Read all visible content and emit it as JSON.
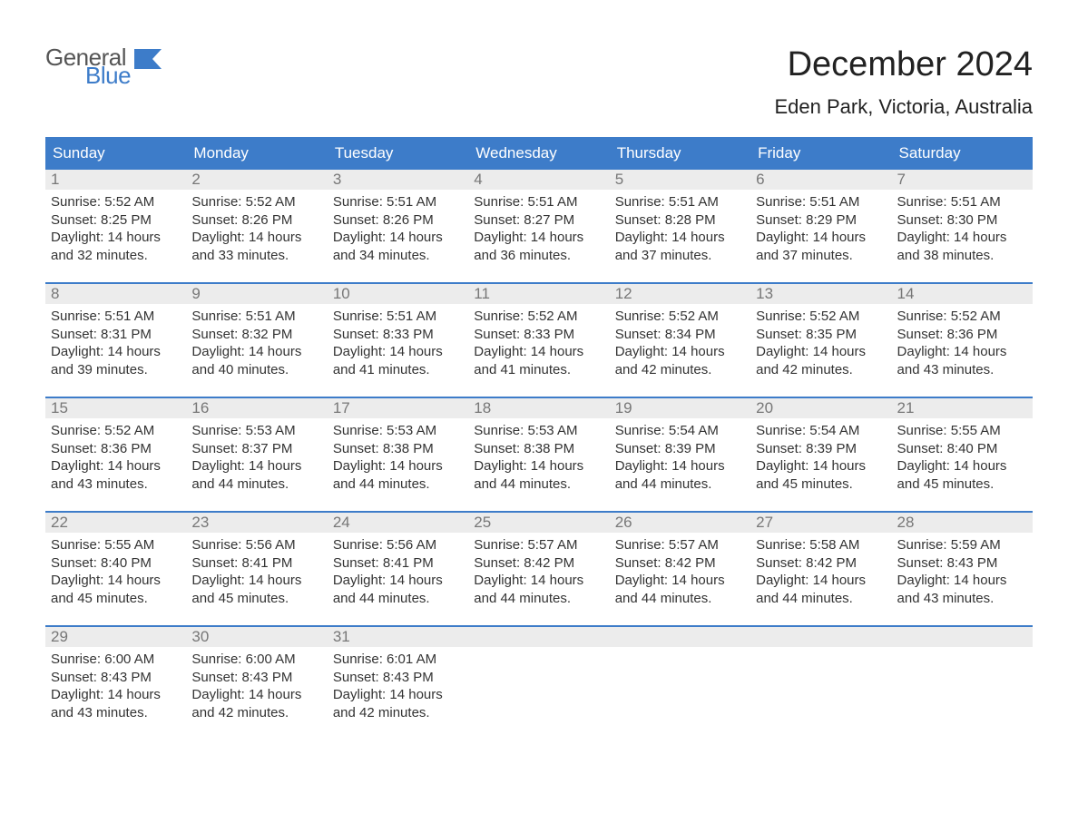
{
  "logo": {
    "text1": "General",
    "text2": "Blue"
  },
  "title": "December 2024",
  "location": "Eden Park, Victoria, Australia",
  "colors": {
    "brand_blue": "#3d7cc9",
    "header_text": "#ffffff",
    "daynum_bg": "#ececec",
    "daynum_fg": "#777777",
    "body_text": "#333333",
    "background": "#ffffff"
  },
  "columns": [
    "Sunday",
    "Monday",
    "Tuesday",
    "Wednesday",
    "Thursday",
    "Friday",
    "Saturday"
  ],
  "weeks": [
    [
      {
        "n": "1",
        "sunrise": "Sunrise: 5:52 AM",
        "sunset": "Sunset: 8:25 PM",
        "d1": "Daylight: 14 hours",
        "d2": "and 32 minutes."
      },
      {
        "n": "2",
        "sunrise": "Sunrise: 5:52 AM",
        "sunset": "Sunset: 8:26 PM",
        "d1": "Daylight: 14 hours",
        "d2": "and 33 minutes."
      },
      {
        "n": "3",
        "sunrise": "Sunrise: 5:51 AM",
        "sunset": "Sunset: 8:26 PM",
        "d1": "Daylight: 14 hours",
        "d2": "and 34 minutes."
      },
      {
        "n": "4",
        "sunrise": "Sunrise: 5:51 AM",
        "sunset": "Sunset: 8:27 PM",
        "d1": "Daylight: 14 hours",
        "d2": "and 36 minutes."
      },
      {
        "n": "5",
        "sunrise": "Sunrise: 5:51 AM",
        "sunset": "Sunset: 8:28 PM",
        "d1": "Daylight: 14 hours",
        "d2": "and 37 minutes."
      },
      {
        "n": "6",
        "sunrise": "Sunrise: 5:51 AM",
        "sunset": "Sunset: 8:29 PM",
        "d1": "Daylight: 14 hours",
        "d2": "and 37 minutes."
      },
      {
        "n": "7",
        "sunrise": "Sunrise: 5:51 AM",
        "sunset": "Sunset: 8:30 PM",
        "d1": "Daylight: 14 hours",
        "d2": "and 38 minutes."
      }
    ],
    [
      {
        "n": "8",
        "sunrise": "Sunrise: 5:51 AM",
        "sunset": "Sunset: 8:31 PM",
        "d1": "Daylight: 14 hours",
        "d2": "and 39 minutes."
      },
      {
        "n": "9",
        "sunrise": "Sunrise: 5:51 AM",
        "sunset": "Sunset: 8:32 PM",
        "d1": "Daylight: 14 hours",
        "d2": "and 40 minutes."
      },
      {
        "n": "10",
        "sunrise": "Sunrise: 5:51 AM",
        "sunset": "Sunset: 8:33 PM",
        "d1": "Daylight: 14 hours",
        "d2": "and 41 minutes."
      },
      {
        "n": "11",
        "sunrise": "Sunrise: 5:52 AM",
        "sunset": "Sunset: 8:33 PM",
        "d1": "Daylight: 14 hours",
        "d2": "and 41 minutes."
      },
      {
        "n": "12",
        "sunrise": "Sunrise: 5:52 AM",
        "sunset": "Sunset: 8:34 PM",
        "d1": "Daylight: 14 hours",
        "d2": "and 42 minutes."
      },
      {
        "n": "13",
        "sunrise": "Sunrise: 5:52 AM",
        "sunset": "Sunset: 8:35 PM",
        "d1": "Daylight: 14 hours",
        "d2": "and 42 minutes."
      },
      {
        "n": "14",
        "sunrise": "Sunrise: 5:52 AM",
        "sunset": "Sunset: 8:36 PM",
        "d1": "Daylight: 14 hours",
        "d2": "and 43 minutes."
      }
    ],
    [
      {
        "n": "15",
        "sunrise": "Sunrise: 5:52 AM",
        "sunset": "Sunset: 8:36 PM",
        "d1": "Daylight: 14 hours",
        "d2": "and 43 minutes."
      },
      {
        "n": "16",
        "sunrise": "Sunrise: 5:53 AM",
        "sunset": "Sunset: 8:37 PM",
        "d1": "Daylight: 14 hours",
        "d2": "and 44 minutes."
      },
      {
        "n": "17",
        "sunrise": "Sunrise: 5:53 AM",
        "sunset": "Sunset: 8:38 PM",
        "d1": "Daylight: 14 hours",
        "d2": "and 44 minutes."
      },
      {
        "n": "18",
        "sunrise": "Sunrise: 5:53 AM",
        "sunset": "Sunset: 8:38 PM",
        "d1": "Daylight: 14 hours",
        "d2": "and 44 minutes."
      },
      {
        "n": "19",
        "sunrise": "Sunrise: 5:54 AM",
        "sunset": "Sunset: 8:39 PM",
        "d1": "Daylight: 14 hours",
        "d2": "and 44 minutes."
      },
      {
        "n": "20",
        "sunrise": "Sunrise: 5:54 AM",
        "sunset": "Sunset: 8:39 PM",
        "d1": "Daylight: 14 hours",
        "d2": "and 45 minutes."
      },
      {
        "n": "21",
        "sunrise": "Sunrise: 5:55 AM",
        "sunset": "Sunset: 8:40 PM",
        "d1": "Daylight: 14 hours",
        "d2": "and 45 minutes."
      }
    ],
    [
      {
        "n": "22",
        "sunrise": "Sunrise: 5:55 AM",
        "sunset": "Sunset: 8:40 PM",
        "d1": "Daylight: 14 hours",
        "d2": "and 45 minutes."
      },
      {
        "n": "23",
        "sunrise": "Sunrise: 5:56 AM",
        "sunset": "Sunset: 8:41 PM",
        "d1": "Daylight: 14 hours",
        "d2": "and 45 minutes."
      },
      {
        "n": "24",
        "sunrise": "Sunrise: 5:56 AM",
        "sunset": "Sunset: 8:41 PM",
        "d1": "Daylight: 14 hours",
        "d2": "and 44 minutes."
      },
      {
        "n": "25",
        "sunrise": "Sunrise: 5:57 AM",
        "sunset": "Sunset: 8:42 PM",
        "d1": "Daylight: 14 hours",
        "d2": "and 44 minutes."
      },
      {
        "n": "26",
        "sunrise": "Sunrise: 5:57 AM",
        "sunset": "Sunset: 8:42 PM",
        "d1": "Daylight: 14 hours",
        "d2": "and 44 minutes."
      },
      {
        "n": "27",
        "sunrise": "Sunrise: 5:58 AM",
        "sunset": "Sunset: 8:42 PM",
        "d1": "Daylight: 14 hours",
        "d2": "and 44 minutes."
      },
      {
        "n": "28",
        "sunrise": "Sunrise: 5:59 AM",
        "sunset": "Sunset: 8:43 PM",
        "d1": "Daylight: 14 hours",
        "d2": "and 43 minutes."
      }
    ],
    [
      {
        "n": "29",
        "sunrise": "Sunrise: 6:00 AM",
        "sunset": "Sunset: 8:43 PM",
        "d1": "Daylight: 14 hours",
        "d2": "and 43 minutes."
      },
      {
        "n": "30",
        "sunrise": "Sunrise: 6:00 AM",
        "sunset": "Sunset: 8:43 PM",
        "d1": "Daylight: 14 hours",
        "d2": "and 42 minutes."
      },
      {
        "n": "31",
        "sunrise": "Sunrise: 6:01 AM",
        "sunset": "Sunset: 8:43 PM",
        "d1": "Daylight: 14 hours",
        "d2": "and 42 minutes."
      },
      null,
      null,
      null,
      null
    ]
  ]
}
